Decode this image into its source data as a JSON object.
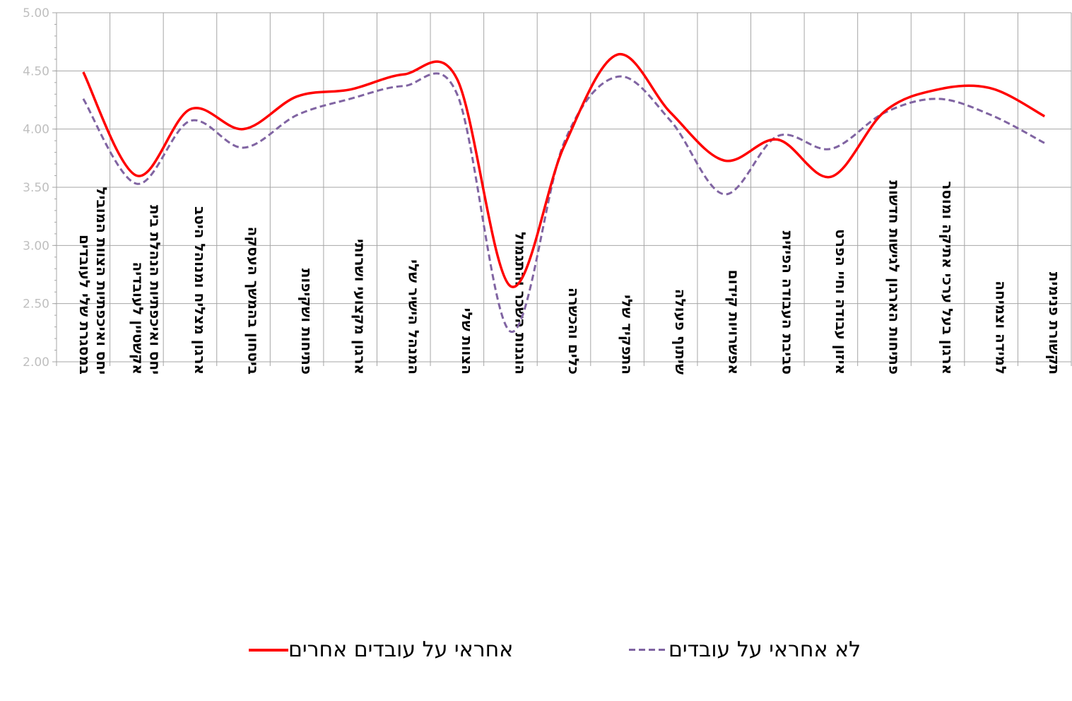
{
  "chart_data": {
    "type": "line",
    "categories": [
      "יחס ואיכפתיות הצוות המוביל במסגרת שלי לעובדים",
      "יחס ואיכפתיות הנהלת בית אקשטיין לעובדיה",
      "ארגון מצליח ומנוהל היטב",
      "ביטחון בהמשך העסקה",
      "פתיחות ושקיפות",
      "ארגון מקצועי ושרותי",
      "המנהל הישיר שלי",
      "הצוות שלי",
      "הוגנות השכר והתגמול",
      "כלים והכשרה",
      "התפקיד שלי",
      "שיתוף פעולה",
      "אפשרויות קידום",
      "סביבת העבודה הפיזית",
      "איזון עבודה וחיי הפרט",
      "פתיחות הארגון לגישות חדשות",
      "ארגון בעל ערכי אתיקה ומוסר",
      "למידה וצמיחה",
      "תקשורת פנימית"
    ],
    "series": [
      {
        "name": "אחראי על עובדים אחרים",
        "color": "#ff0000",
        "style": "solid",
        "values": [
          4.49,
          3.6,
          4.17,
          4.0,
          4.28,
          4.34,
          4.47,
          4.43,
          2.65,
          3.85,
          4.64,
          4.14,
          3.73,
          3.91,
          3.59,
          4.15,
          4.34,
          4.35,
          4.11
        ]
      },
      {
        "name": "לא אחראי על עובדים",
        "color": "#8064a2",
        "style": "dashed",
        "values": [
          4.26,
          3.53,
          4.07,
          3.84,
          4.12,
          4.26,
          4.37,
          4.3,
          2.26,
          3.88,
          4.45,
          4.07,
          3.44,
          3.94,
          3.83,
          4.14,
          4.26,
          4.12,
          3.88
        ]
      }
    ],
    "y_tick_labels": [
      "2.00",
      "2.50",
      "3.00",
      "3.50",
      "4.00",
      "4.50",
      "5.00"
    ],
    "ylim": [
      2.0,
      5.0
    ],
    "grid": true,
    "legend_position": "bottom"
  }
}
